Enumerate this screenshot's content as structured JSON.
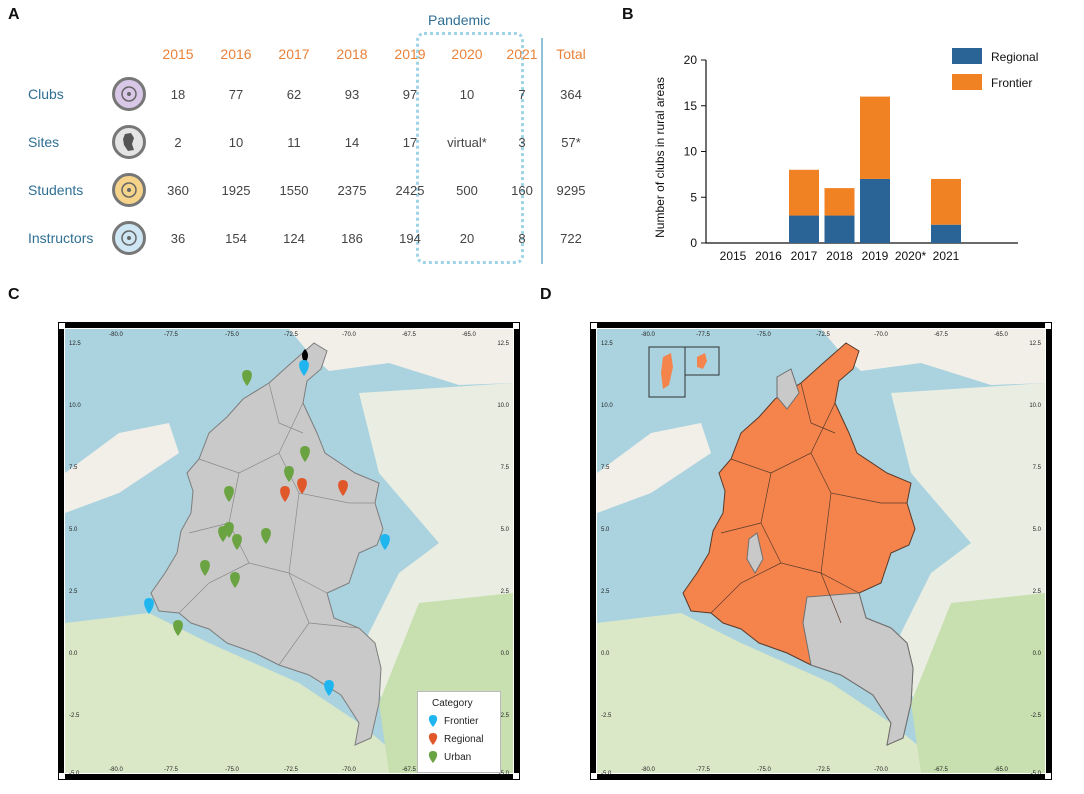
{
  "panels": {
    "a": "A",
    "b": "B",
    "c": "C",
    "d": "D"
  },
  "table": {
    "pandemic_label": "Pandemic",
    "years": [
      "2015",
      "2016",
      "2017",
      "2018",
      "2019",
      "2020",
      "2021"
    ],
    "total_label": "Total",
    "rows": [
      {
        "label": "Clubs",
        "icon": "network-icon",
        "values": [
          "18",
          "77",
          "62",
          "93",
          "97",
          "10",
          "7"
        ],
        "total": "364"
      },
      {
        "label": "Sites",
        "icon": "colombia-map-icon",
        "values": [
          "2",
          "10",
          "11",
          "14",
          "17",
          "virtual*",
          "3"
        ],
        "total": "57*"
      },
      {
        "label": "Students",
        "icon": "students-icon",
        "values": [
          "360",
          "1925",
          "1550",
          "2375",
          "2425",
          "500",
          "160"
        ],
        "total": "9295"
      },
      {
        "label": "Instructors",
        "icon": "instructor-icon",
        "values": [
          "36",
          "154",
          "124",
          "186",
          "194",
          "20",
          "8"
        ],
        "total": "722"
      }
    ]
  },
  "chart_data": {
    "type": "bar",
    "stacked": true,
    "title": "",
    "xlabel": "",
    "ylabel": "Number of clubs in rural areas",
    "categories": [
      "2015",
      "2016",
      "2017",
      "2018",
      "2019",
      "2020*",
      "2021"
    ],
    "series": [
      {
        "name": "Regional",
        "color": "#2a6496",
        "values": [
          0,
          0,
          3,
          3,
          7,
          0,
          2
        ]
      },
      {
        "name": "Frontier",
        "color": "#f08223",
        "values": [
          0,
          0,
          5,
          3,
          9,
          0,
          5
        ]
      }
    ],
    "ylim": [
      0,
      20
    ],
    "yticks": [
      "0",
      "5",
      "10",
      "15",
      "20"
    ],
    "legend_position": "top-right"
  },
  "map_c": {
    "x_ticks": [
      "-80.0",
      "-77.5",
      "-75.0",
      "-72.5",
      "-70.0",
      "-67.5",
      "-65.0"
    ],
    "y_ticks": [
      "12.5",
      "10.0",
      "7.5",
      "5.0",
      "2.5",
      "0.0",
      "-2.5",
      "-5.0"
    ],
    "legend_title": "Category",
    "legend": [
      {
        "label": "Frontier",
        "color": "#1fb6f0"
      },
      {
        "label": "Regional",
        "color": "#e0572a"
      },
      {
        "label": "Urban",
        "color": "#6aa342"
      }
    ]
  },
  "map_d": {
    "x_ticks": [
      "-80.0",
      "-77.5",
      "-75.0",
      "-72.5",
      "-70.0",
      "-67.5",
      "-65.0"
    ],
    "y_ticks": [
      "12.5",
      "10.0",
      "7.5",
      "5.0",
      "2.5",
      "0.0",
      "-2.5",
      "-5.0"
    ],
    "fill_color": "#f4844c"
  }
}
